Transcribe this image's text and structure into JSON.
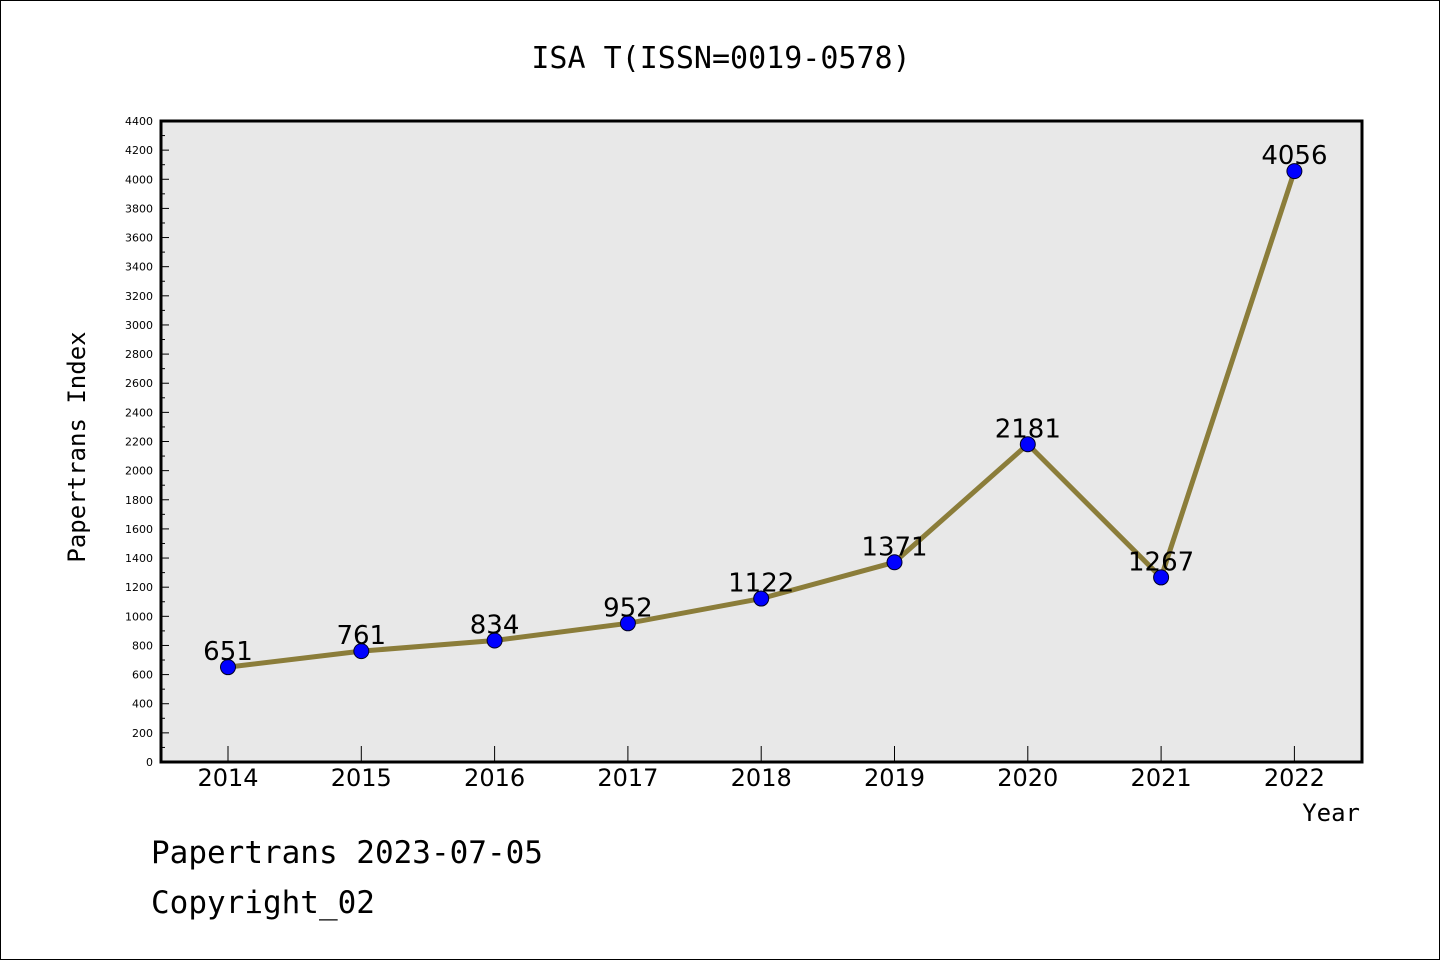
{
  "chart_data": {
    "type": "line",
    "title": "ISA T(ISSN=0019-0578)",
    "xlabel": "Year",
    "ylabel": "Papertrans Index",
    "categories": [
      "2014",
      "2015",
      "2016",
      "2017",
      "2018",
      "2019",
      "2020",
      "2021",
      "2022"
    ],
    "series": [
      {
        "values": [
          651,
          761,
          834,
          952,
          1122,
          1371,
          2181,
          1267,
          4056
        ]
      }
    ],
    "ylim": [
      0,
      4400
    ],
    "yticks": [
      0,
      200,
      400,
      600,
      800,
      1000,
      1200,
      1400,
      1600,
      1800,
      2000,
      2200,
      2400,
      2600,
      2800,
      3000,
      3200,
      3400,
      3600,
      3800,
      4000,
      4200,
      4400
    ],
    "data_labels": [
      "651",
      "761",
      "834",
      "952",
      "1122",
      "1371",
      "2181",
      "1267",
      "4056"
    ],
    "grid": false,
    "plot_background": "#e8e8e8",
    "line_color": "#8b7d3a",
    "marker_color": "#0000ff"
  },
  "footer": {
    "line1": "Papertrans 2023-07-05",
    "line2": "Copyright_02"
  }
}
